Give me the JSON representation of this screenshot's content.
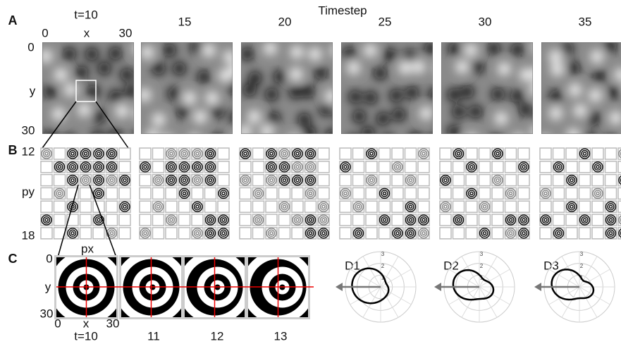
{
  "panel_labels": [
    "A",
    "B",
    "C"
  ],
  "panel_a": {
    "axis_title": "Timestep",
    "timesteps": [
      "t=10",
      "15",
      "20",
      "25",
      "30",
      "35"
    ],
    "x_axis": {
      "start": "0",
      "label": "x",
      "end": "30"
    },
    "y_axis": {
      "start": "0",
      "label": "y",
      "end": "30"
    }
  },
  "panel_b": {
    "y_axis": {
      "start": "12",
      "label": "py",
      "end": "18"
    },
    "x_label": "px"
  },
  "panel_c": {
    "timesteps": [
      "t=10",
      "11",
      "12",
      "13"
    ],
    "x_axis": {
      "start": "0",
      "label": "x",
      "end": "30"
    },
    "y_axis": {
      "start": "0",
      "label": "y",
      "end": "30"
    }
  },
  "panel_d": {
    "plots": [
      {
        "label": "D1"
      },
      {
        "label": "D2"
      },
      {
        "label": "D3"
      }
    ],
    "ring_labels": [
      "1",
      "2",
      "3"
    ]
  }
}
